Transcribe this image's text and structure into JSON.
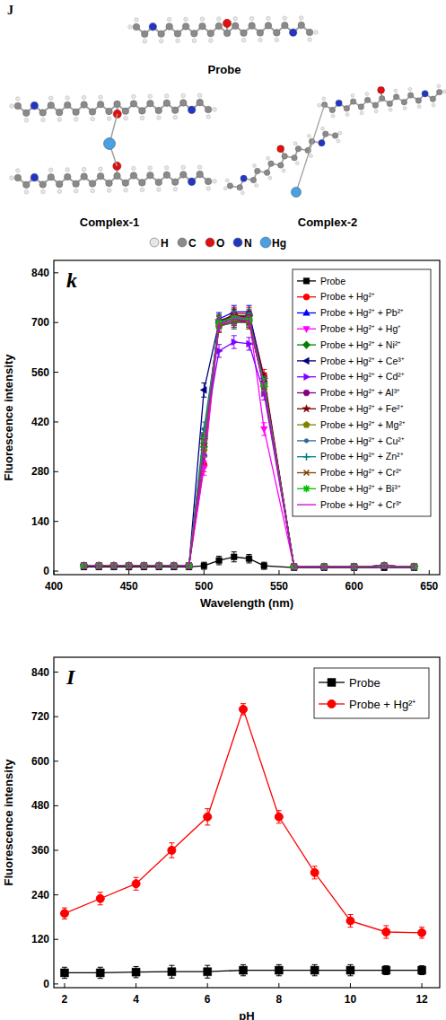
{
  "panel_j": {
    "label": "J",
    "molecules": [
      "Probe",
      "Complex-1",
      "Complex-2"
    ],
    "atoms": [
      {
        "label": "H",
        "color": "#e6e6e6"
      },
      {
        "label": "C",
        "color": "#8a8a8a"
      },
      {
        "label": "O",
        "color": "#e01010"
      },
      {
        "label": "N",
        "color": "#2236c4"
      },
      {
        "label": "Hg",
        "color": "#4aa0e0"
      }
    ]
  },
  "chart_data": [
    {
      "type": "line",
      "title": "k",
      "x_label": "Wavelength (nm)",
      "y_label": "Fluorescence intensity",
      "x": [
        420,
        430,
        440,
        450,
        460,
        470,
        480,
        490,
        500,
        510,
        520,
        530,
        540,
        560,
        580,
        600,
        620,
        640
      ],
      "xlim": [
        400,
        657
      ],
      "xticks": [
        400,
        450,
        500,
        550,
        600,
        650
      ],
      "ylim": [
        -10,
        875
      ],
      "yticks": [
        0,
        140,
        280,
        420,
        560,
        700,
        840
      ],
      "legend": "upper right",
      "series": [
        {
          "name": "Probe",
          "color": "#000000",
          "marker": "square",
          "values": [
            12,
            12,
            12,
            12,
            12,
            12,
            12,
            12,
            15,
            30,
            40,
            35,
            15,
            10,
            10,
            10,
            10,
            10
          ],
          "errors": [
            8,
            8,
            8,
            8,
            8,
            8,
            8,
            8,
            10,
            12,
            14,
            12,
            10,
            8,
            8,
            8,
            8,
            8
          ]
        },
        {
          "name": "Probe + Hg²⁺",
          "color": "#ff0000",
          "marker": "circle",
          "values": [
            15,
            15,
            15,
            15,
            15,
            15,
            15,
            15,
            300,
            700,
            725,
            725,
            550,
            12,
            12,
            12,
            15,
            12
          ],
          "errors": [
            8,
            8,
            8,
            8,
            8,
            8,
            8,
            8,
            20,
            18,
            18,
            18,
            18,
            8,
            8,
            8,
            8,
            8
          ]
        },
        {
          "name": "Probe + Hg²⁺ + Pb²⁺",
          "color": "#0000ff",
          "marker": "triangle-up",
          "values": [
            15,
            15,
            15,
            15,
            15,
            15,
            15,
            15,
            330,
            710,
            730,
            730,
            540,
            12,
            12,
            12,
            15,
            12
          ],
          "errors": [
            8,
            8,
            8,
            8,
            8,
            8,
            8,
            8,
            20,
            18,
            18,
            18,
            18,
            8,
            8,
            8,
            8,
            8
          ]
        },
        {
          "name": "Probe + Hg²⁺ + Hg⁺",
          "color": "#ff00ff",
          "marker": "triangle-down",
          "values": [
            15,
            15,
            15,
            15,
            15,
            15,
            15,
            15,
            290,
            690,
            715,
            715,
            400,
            12,
            12,
            12,
            15,
            12
          ],
          "errors": [
            8,
            8,
            8,
            8,
            8,
            8,
            8,
            8,
            20,
            18,
            18,
            18,
            18,
            8,
            8,
            8,
            8,
            8
          ]
        },
        {
          "name": "Probe + Hg²⁺ + Ni²⁺",
          "color": "#008000",
          "marker": "diamond",
          "values": [
            15,
            15,
            15,
            15,
            15,
            15,
            15,
            15,
            350,
            700,
            720,
            720,
            520,
            12,
            12,
            12,
            15,
            12
          ],
          "errors": [
            8,
            8,
            8,
            8,
            8,
            8,
            8,
            8,
            20,
            18,
            18,
            18,
            18,
            8,
            8,
            8,
            8,
            8
          ]
        },
        {
          "name": "Probe + Hg²⁺ + Ce³⁺",
          "color": "#000080",
          "marker": "triangle-left",
          "values": [
            15,
            15,
            15,
            15,
            15,
            15,
            15,
            15,
            510,
            700,
            710,
            705,
            530,
            12,
            12,
            12,
            15,
            12
          ],
          "errors": [
            8,
            8,
            8,
            8,
            8,
            8,
            8,
            8,
            20,
            18,
            18,
            18,
            18,
            8,
            8,
            8,
            8,
            8
          ]
        },
        {
          "name": "Probe + Hg²⁺ + Cd²⁺",
          "color": "#8000ff",
          "marker": "triangle-right",
          "values": [
            15,
            15,
            15,
            15,
            15,
            15,
            15,
            15,
            380,
            620,
            645,
            640,
            500,
            12,
            12,
            12,
            15,
            12
          ],
          "errors": [
            8,
            8,
            8,
            8,
            8,
            8,
            8,
            8,
            20,
            18,
            18,
            18,
            18,
            8,
            8,
            8,
            8,
            8
          ]
        },
        {
          "name": "Probe + Hg²⁺ + Al³⁺",
          "color": "#800080",
          "marker": "hexagon",
          "values": [
            15,
            15,
            15,
            15,
            15,
            15,
            15,
            15,
            360,
            690,
            705,
            705,
            530,
            12,
            12,
            12,
            15,
            12
          ],
          "errors": [
            8,
            8,
            8,
            8,
            8,
            8,
            8,
            8,
            20,
            18,
            18,
            18,
            18,
            8,
            8,
            8,
            8,
            8
          ]
        },
        {
          "name": "Probe + Hg²⁺ + Fe²⁺",
          "color": "#800000",
          "marker": "star",
          "values": [
            15,
            15,
            15,
            15,
            15,
            15,
            15,
            15,
            370,
            705,
            720,
            715,
            540,
            12,
            12,
            12,
            15,
            12
          ],
          "errors": [
            8,
            8,
            8,
            8,
            8,
            8,
            8,
            8,
            20,
            18,
            18,
            18,
            18,
            8,
            8,
            8,
            8,
            8
          ]
        },
        {
          "name": "Probe + Hg²⁺ + Mg²⁺",
          "color": "#808000",
          "marker": "pentagon",
          "values": [
            15,
            15,
            15,
            15,
            15,
            15,
            15,
            15,
            340,
            690,
            700,
            700,
            520,
            12,
            12,
            12,
            15,
            12
          ],
          "errors": [
            8,
            8,
            8,
            8,
            8,
            8,
            8,
            8,
            20,
            18,
            18,
            18,
            18,
            8,
            8,
            8,
            8,
            8
          ]
        },
        {
          "name": "Probe + Hg²⁺ + Cu²⁺",
          "color": "#336699",
          "marker": "small-circle",
          "values": [
            15,
            15,
            15,
            15,
            15,
            15,
            15,
            15,
            400,
            690,
            700,
            700,
            520,
            12,
            12,
            12,
            15,
            12
          ],
          "errors": [
            8,
            8,
            8,
            8,
            8,
            8,
            8,
            8,
            20,
            18,
            18,
            18,
            18,
            8,
            8,
            8,
            8,
            8
          ]
        },
        {
          "name": "Probe + Hg²⁺ + Zn²⁺",
          "color": "#008080",
          "marker": "plus",
          "values": [
            15,
            15,
            15,
            15,
            15,
            15,
            15,
            15,
            380,
            700,
            715,
            710,
            530,
            12,
            12,
            12,
            15,
            12
          ],
          "errors": [
            8,
            8,
            8,
            8,
            8,
            8,
            8,
            8,
            20,
            18,
            18,
            18,
            18,
            8,
            8,
            8,
            8,
            8
          ]
        },
        {
          "name": "Probe + Hg²⁺ + Cr²⁺",
          "color": "#804000",
          "marker": "x",
          "values": [
            15,
            15,
            15,
            15,
            15,
            15,
            15,
            15,
            360,
            690,
            705,
            700,
            520,
            12,
            12,
            12,
            15,
            12
          ],
          "errors": [
            8,
            8,
            8,
            8,
            8,
            8,
            8,
            8,
            20,
            18,
            18,
            18,
            18,
            8,
            8,
            8,
            8,
            8
          ]
        },
        {
          "name": "Probe + Hg²⁺ + Bi³⁺",
          "color": "#00c000",
          "marker": "asterisk",
          "values": [
            15,
            15,
            15,
            15,
            15,
            15,
            15,
            15,
            370,
            700,
            712,
            708,
            525,
            12,
            12,
            12,
            15,
            12
          ],
          "errors": [
            8,
            8,
            8,
            8,
            8,
            8,
            8,
            8,
            20,
            18,
            18,
            18,
            18,
            8,
            8,
            8,
            8,
            8
          ]
        },
        {
          "name": "Probe + Hg²⁺ + Cr³⁺",
          "color": "#cc00cc",
          "marker": "none",
          "values": [
            15,
            15,
            15,
            15,
            15,
            15,
            15,
            15,
            350,
            695,
            710,
            705,
            515,
            12,
            12,
            12,
            15,
            12
          ],
          "errors": [
            8,
            8,
            8,
            8,
            8,
            8,
            8,
            8,
            20,
            18,
            18,
            18,
            18,
            8,
            8,
            8,
            8,
            8
          ]
        }
      ]
    },
    {
      "type": "line",
      "title": "I",
      "x_label": "pH",
      "y_label": "Fluorescence intensity",
      "x": [
        2,
        3,
        4,
        5,
        6,
        7,
        8,
        9,
        10,
        11,
        12
      ],
      "xlim": [
        1.7,
        12.5
      ],
      "xticks": [
        2,
        4,
        6,
        8,
        10,
        12
      ],
      "ylim": [
        -10,
        880
      ],
      "yticks": [
        0,
        120,
        240,
        360,
        480,
        600,
        720,
        840
      ],
      "legend": "upper right",
      "series": [
        {
          "name": "Probe",
          "color": "#000000",
          "marker": "square",
          "values": [
            30,
            30,
            32,
            33,
            33,
            37,
            37,
            37,
            37,
            37,
            37
          ],
          "errors": [
            15,
            15,
            15,
            17,
            17,
            15,
            15,
            15,
            15,
            12,
            12
          ]
        },
        {
          "name": "Probe + Hg²⁺",
          "color": "#ff0000",
          "marker": "circle",
          "values": [
            190,
            230,
            270,
            360,
            450,
            740,
            450,
            300,
            170,
            140,
            138
          ],
          "errors": [
            15,
            17,
            17,
            20,
            22,
            15,
            17,
            17,
            17,
            17,
            15
          ]
        }
      ]
    }
  ]
}
